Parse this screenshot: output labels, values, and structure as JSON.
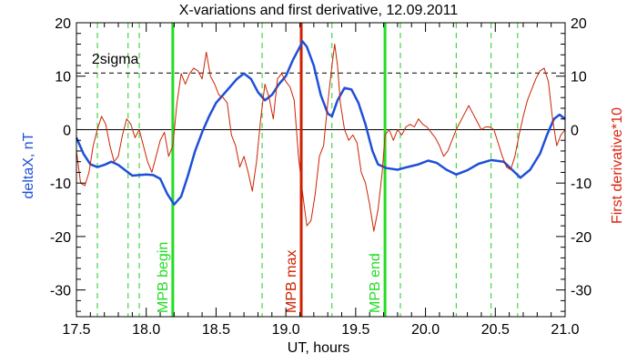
{
  "chart_data": {
    "type": "line",
    "title": "X-variations and first derivative, 12.09.2011",
    "xlabel": "UT, hours",
    "ylabel_left": "deltaX, nT",
    "ylabel_right": "First derivative*10",
    "xlim": [
      17.5,
      21.0
    ],
    "ylim": [
      -35,
      20
    ],
    "x_ticks": [
      "17.5",
      "18.0",
      "18.5",
      "19.0",
      "19.5",
      "20.0",
      "20.5",
      "21.0"
    ],
    "y_ticks_left": [
      "20",
      "10",
      "0",
      "-10",
      "-20",
      "-30"
    ],
    "y_ticks_right": [
      "20",
      "10",
      "0",
      "-10",
      "-20",
      "-30"
    ],
    "threshold": {
      "label": "2sigma",
      "value": 10.6
    },
    "zero_line": 0,
    "markers": [
      {
        "label": "MPB begin",
        "x": 18.19,
        "color": "#22dd22"
      },
      {
        "label": "MPB max",
        "x": 19.11,
        "color": "#cc2200"
      },
      {
        "label": "MPB end",
        "x": 19.71,
        "color": "#22dd22"
      }
    ],
    "dashed_lines": [
      17.65,
      17.87,
      17.95,
      18.83,
      19.33,
      19.82,
      20.22,
      20.47,
      20.66
    ],
    "series": [
      {
        "key": "deltaX",
        "color": "#1f4fd8",
        "points": [
          [
            17.5,
            -1.5
          ],
          [
            17.55,
            -4.5
          ],
          [
            17.6,
            -6.5
          ],
          [
            17.65,
            -7.0
          ],
          [
            17.7,
            -6.6
          ],
          [
            17.75,
            -6.0
          ],
          [
            17.8,
            -6.6
          ],
          [
            17.85,
            -7.6
          ],
          [
            17.9,
            -8.6
          ],
          [
            17.95,
            -8.5
          ],
          [
            18.0,
            -8.4
          ],
          [
            18.05,
            -8.5
          ],
          [
            18.1,
            -9.2
          ],
          [
            18.15,
            -12.0
          ],
          [
            18.2,
            -14.0
          ],
          [
            18.25,
            -12.5
          ],
          [
            18.3,
            -8.5
          ],
          [
            18.35,
            -4.0
          ],
          [
            18.4,
            -0.5
          ],
          [
            18.45,
            2.5
          ],
          [
            18.5,
            5.0
          ],
          [
            18.55,
            6.5
          ],
          [
            18.6,
            8.0
          ],
          [
            18.65,
            9.5
          ],
          [
            18.7,
            10.5
          ],
          [
            18.75,
            9.5
          ],
          [
            18.8,
            7.0
          ],
          [
            18.85,
            5.5
          ],
          [
            18.9,
            6.5
          ],
          [
            18.95,
            8.5
          ],
          [
            19.0,
            10.0
          ],
          [
            19.05,
            13.0
          ],
          [
            19.1,
            15.5
          ],
          [
            19.12,
            16.5
          ],
          [
            19.15,
            15.5
          ],
          [
            19.2,
            12.0
          ],
          [
            19.25,
            6.5
          ],
          [
            19.3,
            3.0
          ],
          [
            19.33,
            2.5
          ],
          [
            19.37,
            5.5
          ],
          [
            19.42,
            7.8
          ],
          [
            19.47,
            7.5
          ],
          [
            19.52,
            5.0
          ],
          [
            19.57,
            1.0
          ],
          [
            19.62,
            -4.0
          ],
          [
            19.66,
            -6.5
          ],
          [
            19.72,
            -7.2
          ],
          [
            19.8,
            -7.5
          ],
          [
            19.87,
            -7.0
          ],
          [
            19.95,
            -6.5
          ],
          [
            20.02,
            -5.8
          ],
          [
            20.08,
            -6.2
          ],
          [
            20.15,
            -7.5
          ],
          [
            20.22,
            -8.4
          ],
          [
            20.3,
            -7.6
          ],
          [
            20.38,
            -6.4
          ],
          [
            20.47,
            -5.7
          ],
          [
            20.56,
            -6.0
          ],
          [
            20.62,
            -7.5
          ],
          [
            20.68,
            -9.0
          ],
          [
            20.75,
            -7.5
          ],
          [
            20.82,
            -4.5
          ],
          [
            20.87,
            -1.0
          ],
          [
            20.92,
            2.0
          ],
          [
            20.96,
            2.8
          ],
          [
            21.0,
            2.0
          ]
        ]
      },
      {
        "key": "derivative",
        "color": "#cc2200",
        "points": [
          [
            17.5,
            -4
          ],
          [
            17.53,
            -10
          ],
          [
            17.56,
            -10.5
          ],
          [
            17.59,
            -8
          ],
          [
            17.62,
            -3
          ],
          [
            17.65,
            0
          ],
          [
            17.68,
            2.5
          ],
          [
            17.71,
            1
          ],
          [
            17.74,
            -3
          ],
          [
            17.77,
            -6
          ],
          [
            17.8,
            -5
          ],
          [
            17.83,
            -1
          ],
          [
            17.86,
            2
          ],
          [
            17.89,
            1
          ],
          [
            17.92,
            -1.5
          ],
          [
            17.95,
            0
          ],
          [
            17.98,
            -3
          ],
          [
            18.01,
            -6
          ],
          [
            18.04,
            -8
          ],
          [
            18.07,
            -5
          ],
          [
            18.1,
            -2
          ],
          [
            18.13,
            -0.5
          ],
          [
            18.16,
            -5
          ],
          [
            18.19,
            -3
          ],
          [
            18.22,
            5
          ],
          [
            18.25,
            10.5
          ],
          [
            18.28,
            8.5
          ],
          [
            18.31,
            10.5
          ],
          [
            18.34,
            11.5
          ],
          [
            18.37,
            11
          ],
          [
            18.4,
            9.5
          ],
          [
            18.43,
            14.5
          ],
          [
            18.46,
            10
          ],
          [
            18.49,
            8.5
          ],
          [
            18.52,
            6.5
          ],
          [
            18.55,
            6
          ],
          [
            18.58,
            5
          ],
          [
            18.61,
            -1
          ],
          [
            18.64,
            -3
          ],
          [
            18.67,
            -7
          ],
          [
            18.7,
            -5
          ],
          [
            18.73,
            -8
          ],
          [
            18.76,
            -11.5
          ],
          [
            18.79,
            -6
          ],
          [
            18.82,
            2
          ],
          [
            18.85,
            8.5
          ],
          [
            18.88,
            6
          ],
          [
            18.91,
            2
          ],
          [
            18.94,
            9.5
          ],
          [
            18.97,
            10.5
          ],
          [
            19.0,
            9
          ],
          [
            19.03,
            8
          ],
          [
            19.06,
            5.5
          ],
          [
            19.09,
            -5
          ],
          [
            19.12,
            -12
          ],
          [
            19.15,
            -18
          ],
          [
            19.18,
            -17
          ],
          [
            19.21,
            -12
          ],
          [
            19.24,
            -5
          ],
          [
            19.27,
            -3
          ],
          [
            19.3,
            5
          ],
          [
            19.33,
            12
          ],
          [
            19.35,
            16
          ],
          [
            19.37,
            12
          ],
          [
            19.39,
            5
          ],
          [
            19.42,
            0
          ],
          [
            19.45,
            -2
          ],
          [
            19.48,
            -1
          ],
          [
            19.51,
            -2.5
          ],
          [
            19.54,
            -8
          ],
          [
            19.57,
            -10
          ],
          [
            19.6,
            -14
          ],
          [
            19.63,
            -19
          ],
          [
            19.66,
            -15
          ],
          [
            19.69,
            -8
          ],
          [
            19.71,
            -1
          ],
          [
            19.74,
            0
          ],
          [
            19.77,
            -2
          ],
          [
            19.8,
            0
          ],
          [
            19.83,
            -1
          ],
          [
            19.86,
            0.5
          ],
          [
            19.89,
            1
          ],
          [
            19.92,
            0.5
          ],
          [
            19.95,
            2
          ],
          [
            19.98,
            1
          ],
          [
            20.01,
            0.5
          ],
          [
            20.04,
            -0.5
          ],
          [
            20.07,
            -1.5
          ],
          [
            20.1,
            -3
          ],
          [
            20.13,
            -5
          ],
          [
            20.16,
            -4
          ],
          [
            20.19,
            -2
          ],
          [
            20.22,
            0
          ],
          [
            20.25,
            1.5
          ],
          [
            20.28,
            3
          ],
          [
            20.31,
            4.5
          ],
          [
            20.34,
            3
          ],
          [
            20.37,
            1.5
          ],
          [
            20.4,
            0
          ],
          [
            20.43,
            0.5
          ],
          [
            20.46,
            0.5
          ],
          [
            20.49,
            0
          ],
          [
            20.52,
            -2.5
          ],
          [
            20.55,
            -5
          ],
          [
            20.58,
            -7
          ],
          [
            20.61,
            -7.5
          ],
          [
            20.64,
            -5
          ],
          [
            20.67,
            -1
          ],
          [
            20.7,
            2.5
          ],
          [
            20.73,
            5.5
          ],
          [
            20.76,
            7.5
          ],
          [
            20.79,
            9.5
          ],
          [
            20.82,
            11
          ],
          [
            20.85,
            11.5
          ],
          [
            20.88,
            9
          ],
          [
            20.91,
            2
          ],
          [
            20.94,
            -3
          ],
          [
            20.97,
            -1
          ],
          [
            21.0,
            0
          ]
        ]
      }
    ]
  }
}
